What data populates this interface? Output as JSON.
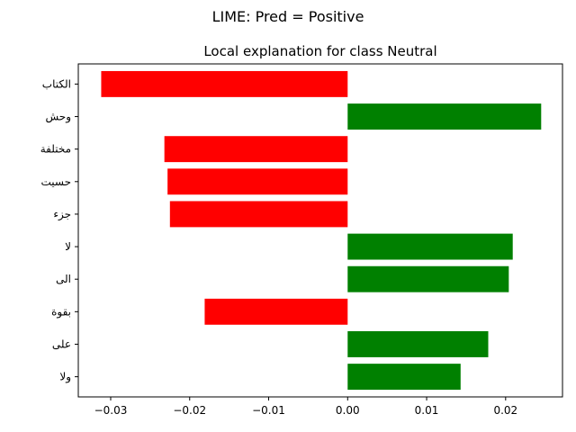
{
  "suptitle": "LIME: Pred = Positive",
  "chart_data": {
    "type": "bar",
    "orientation": "horizontal",
    "title": "Local explanation for class Neutral",
    "xlabel": "",
    "ylabel": "",
    "categories": [
      "الكتاب",
      "وحش",
      "مختلفة",
      "حسيت",
      "جزء",
      "لا",
      "الى",
      "بقوة",
      "على",
      "ولا"
    ],
    "values": [
      -0.0312,
      0.0245,
      -0.0232,
      -0.0228,
      -0.0225,
      0.0209,
      0.0204,
      -0.0181,
      0.0178,
      0.0143
    ],
    "xlim": [
      -0.0341,
      0.0272
    ],
    "xticks": [
      -0.03,
      -0.02,
      -0.01,
      0.0,
      0.01,
      0.02
    ],
    "xtick_labels": [
      "−0.03",
      "−0.02",
      "−0.01",
      "0.00",
      "0.01",
      "0.02"
    ],
    "colors": {
      "positive": "#008000",
      "negative": "#ff0000"
    },
    "grid": false
  }
}
